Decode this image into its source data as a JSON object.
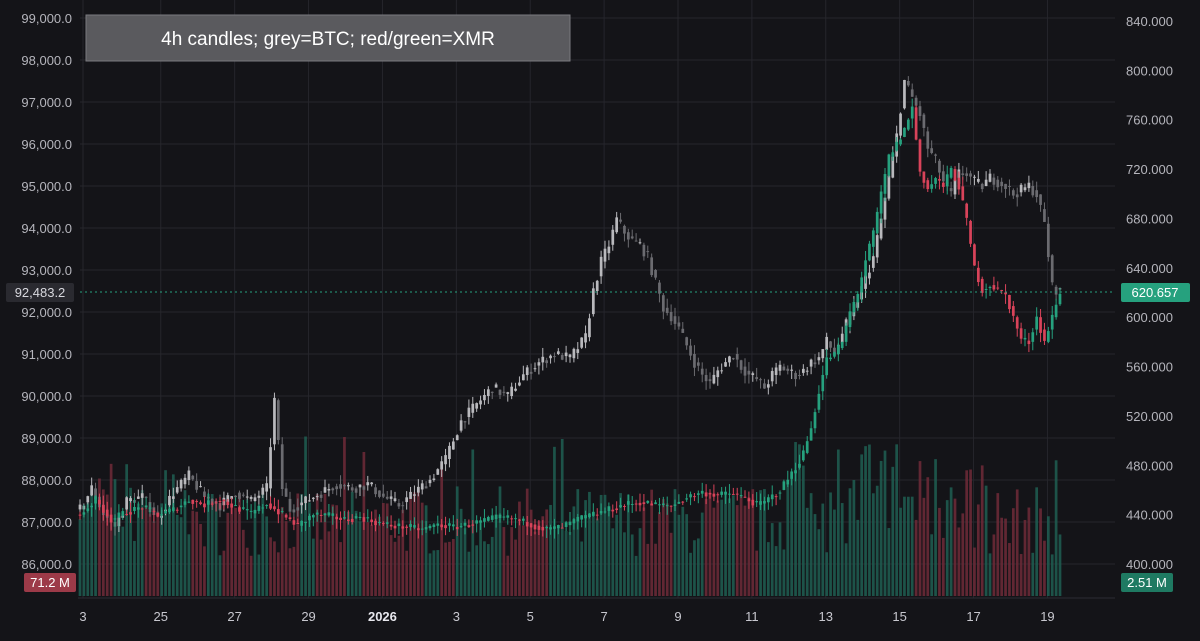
{
  "title": "4h candles; grey=BTC; red/green=XMR",
  "colors": {
    "background": "#141418",
    "grid": "#26262c",
    "btc": "#8a8a8f",
    "btc_up": "#b9b9bd",
    "btc_down": "#6b6b70",
    "xmr_up": "#26a17e",
    "xmr_down": "#d9435a",
    "vol_up": "#1f5e52",
    "vol_down": "#6e2a38",
    "last_price_line": "#26a17e"
  },
  "chart_data": {
    "type": "candlestick",
    "timeframe": "4h",
    "x_tick_labels": [
      "3",
      "25",
      "27",
      "29",
      "2026",
      "3",
      "5",
      "7",
      "9",
      "11",
      "13",
      "15",
      "17",
      "19"
    ],
    "left_axis": {
      "series": "BTC",
      "ticks": [
        "99,000.0",
        "98,000.0",
        "97,000.0",
        "96,000.0",
        "95,000.0",
        "94,000.0",
        "93,000.0",
        "92,000.0",
        "91,000.0",
        "90,000.0",
        "89,000.0",
        "88,000.0",
        "87,000.0",
        "86,000.0"
      ],
      "range": [
        85300,
        99300
      ],
      "current_price_label": "92,483.2",
      "current_price": 92483.2,
      "volume_label": "71.2 M"
    },
    "right_axis": {
      "series": "XMR",
      "ticks": [
        "840.000",
        "800.000",
        "760.000",
        "720.000",
        "680.000",
        "640.000",
        "600.000",
        "560.000",
        "520.000",
        "480.000",
        "440.000",
        "400.000"
      ],
      "range": [
        385,
        845
      ],
      "current_price_label": "620.657",
      "current_price": 620.657,
      "volume_label": "2.51 M"
    },
    "btc_close_path": [
      [
        0,
        87300
      ],
      [
        3,
        87800
      ],
      [
        6,
        87200
      ],
      [
        9,
        86900
      ],
      [
        12,
        87500
      ],
      [
        16,
        87600
      ],
      [
        20,
        87100
      ],
      [
        24,
        87700
      ],
      [
        28,
        88100
      ],
      [
        32,
        87600
      ],
      [
        36,
        87400
      ],
      [
        40,
        87700
      ],
      [
        44,
        87500
      ],
      [
        48,
        87800
      ],
      [
        50,
        89900
      ],
      [
        52,
        87800
      ],
      [
        54,
        87300
      ],
      [
        58,
        87500
      ],
      [
        62,
        87700
      ],
      [
        66,
        87900
      ],
      [
        70,
        87800
      ],
      [
        74,
        87900
      ],
      [
        78,
        87600
      ],
      [
        82,
        87400
      ],
      [
        86,
        87700
      ],
      [
        90,
        88000
      ],
      [
        94,
        88500
      ],
      [
        98,
        89400
      ],
      [
        102,
        89800
      ],
      [
        106,
        90200
      ],
      [
        110,
        90000
      ],
      [
        114,
        90500
      ],
      [
        118,
        90800
      ],
      [
        122,
        91000
      ],
      [
        126,
        90900
      ],
      [
        130,
        91400
      ],
      [
        132,
        92500
      ],
      [
        134,
        93200
      ],
      [
        136,
        93600
      ],
      [
        138,
        94200
      ],
      [
        140,
        93900
      ],
      [
        142,
        93700
      ],
      [
        144,
        93600
      ],
      [
        146,
        93300
      ],
      [
        148,
        92700
      ],
      [
        150,
        92100
      ],
      [
        152,
        91900
      ],
      [
        154,
        91600
      ],
      [
        156,
        91200
      ],
      [
        158,
        90800
      ],
      [
        160,
        90500
      ],
      [
        162,
        90300
      ],
      [
        164,
        90600
      ],
      [
        166,
        90800
      ],
      [
        168,
        91000
      ],
      [
        170,
        90700
      ],
      [
        172,
        90500
      ],
      [
        174,
        90400
      ],
      [
        176,
        90200
      ],
      [
        178,
        90500
      ],
      [
        180,
        90700
      ],
      [
        182,
        90600
      ],
      [
        184,
        90500
      ],
      [
        186,
        90600
      ],
      [
        188,
        90800
      ],
      [
        190,
        90900
      ],
      [
        192,
        91300
      ],
      [
        194,
        91000
      ],
      [
        196,
        91500
      ],
      [
        198,
        91900
      ],
      [
        200,
        92300
      ],
      [
        202,
        92800
      ],
      [
        204,
        93300
      ],
      [
        206,
        94200
      ],
      [
        208,
        95200
      ],
      [
        210,
        96200
      ],
      [
        212,
        97500
      ],
      [
        214,
        97100
      ],
      [
        216,
        96700
      ],
      [
        218,
        95900
      ],
      [
        220,
        95600
      ],
      [
        222,
        95100
      ],
      [
        224,
        94800
      ],
      [
        226,
        95300
      ],
      [
        228,
        95300
      ],
      [
        230,
        95100
      ],
      [
        232,
        95000
      ],
      [
        234,
        95200
      ],
      [
        236,
        95100
      ],
      [
        238,
        95000
      ],
      [
        240,
        94800
      ],
      [
        242,
        94900
      ],
      [
        244,
        95000
      ],
      [
        246,
        94800
      ],
      [
        248,
        94100
      ],
      [
        250,
        92600
      ],
      [
        252,
        92480
      ]
    ],
    "xmr_close_path": [
      [
        0,
        440
      ],
      [
        4,
        452
      ],
      [
        8,
        436
      ],
      [
        12,
        442
      ],
      [
        16,
        446
      ],
      [
        20,
        440
      ],
      [
        24,
        444
      ],
      [
        28,
        452
      ],
      [
        32,
        448
      ],
      [
        36,
        452
      ],
      [
        40,
        446
      ],
      [
        44,
        441
      ],
      [
        48,
        449
      ],
      [
        52,
        440
      ],
      [
        56,
        431
      ],
      [
        60,
        440
      ],
      [
        64,
        439
      ],
      [
        68,
        436
      ],
      [
        72,
        438
      ],
      [
        76,
        434
      ],
      [
        80,
        431
      ],
      [
        84,
        430
      ],
      [
        88,
        428
      ],
      [
        92,
        432
      ],
      [
        96,
        430
      ],
      [
        100,
        432
      ],
      [
        104,
        435
      ],
      [
        108,
        438
      ],
      [
        112,
        436
      ],
      [
        116,
        432
      ],
      [
        120,
        428
      ],
      [
        124,
        430
      ],
      [
        128,
        436
      ],
      [
        132,
        440
      ],
      [
        136,
        444
      ],
      [
        140,
        448
      ],
      [
        144,
        450
      ],
      [
        148,
        448
      ],
      [
        152,
        447
      ],
      [
        156,
        454
      ],
      [
        160,
        458
      ],
      [
        164,
        456
      ],
      [
        168,
        457
      ],
      [
        172,
        452
      ],
      [
        174,
        448
      ],
      [
        176,
        450
      ],
      [
        180,
        460
      ],
      [
        184,
        478
      ],
      [
        186,
        490
      ],
      [
        188,
        510
      ],
      [
        190,
        540
      ],
      [
        192,
        566
      ],
      [
        194,
        570
      ],
      [
        196,
        580
      ],
      [
        198,
        604
      ],
      [
        200,
        620
      ],
      [
        202,
        646
      ],
      [
        204,
        668
      ],
      [
        206,
        700
      ],
      [
        208,
        730
      ],
      [
        210,
        740
      ],
      [
        212,
        752
      ],
      [
        214,
        770
      ],
      [
        216,
        718
      ],
      [
        218,
        704
      ],
      [
        220,
        712
      ],
      [
        222,
        706
      ],
      [
        224,
        720
      ],
      [
        226,
        706
      ],
      [
        228,
        678
      ],
      [
        230,
        640
      ],
      [
        232,
        622
      ],
      [
        234,
        626
      ],
      [
        236,
        622
      ],
      [
        238,
        618
      ],
      [
        240,
        600
      ],
      [
        242,
        582
      ],
      [
        244,
        580
      ],
      [
        246,
        600
      ],
      [
        248,
        580
      ],
      [
        250,
        600
      ],
      [
        252,
        621
      ]
    ],
    "candle_count": 253
  }
}
